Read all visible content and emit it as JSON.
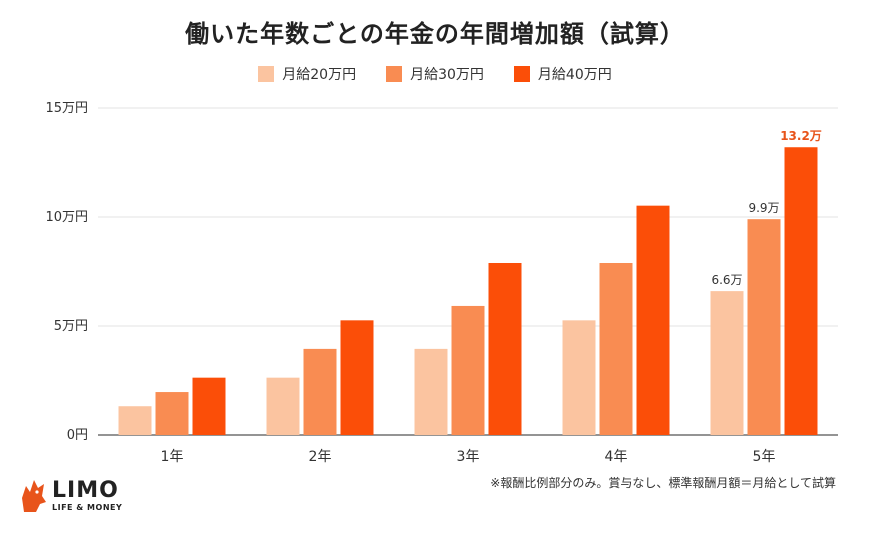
{
  "title": "働いた年数ごとの年金の年間増加額（試算）",
  "footnote": "※報酬比例部分のみ。賞与なし、標準報酬月額＝月給として試算",
  "logo": {
    "name": "LIMO",
    "tagline": "LIFE & MONEY",
    "icon": "fox-icon",
    "color": "#e8541b"
  },
  "chart_data": {
    "type": "bar",
    "title": "働いた年数ごとの年金の年間増加額（試算）",
    "categories": [
      "1年",
      "2年",
      "3年",
      "4年",
      "5年"
    ],
    "series": [
      {
        "name": "月給20万円",
        "color": "#fbc4a0",
        "values": [
          1.32,
          2.63,
          3.95,
          5.26,
          6.6
        ]
      },
      {
        "name": "月給30万円",
        "color": "#f98c52",
        "values": [
          1.97,
          3.95,
          5.92,
          7.89,
          9.9
        ]
      },
      {
        "name": "月給40万円",
        "color": "#fb4e08",
        "values": [
          2.63,
          5.26,
          7.89,
          10.52,
          13.2
        ]
      }
    ],
    "ylim": [
      0,
      15
    ],
    "yticks": [
      0,
      5,
      10,
      15
    ],
    "ytick_labels": [
      "0円",
      "5万円",
      "10万円",
      "15万円"
    ],
    "data_labels": [
      {
        "series": 0,
        "category": 4,
        "text": "6.6万",
        "color": "#333333",
        "bold": false
      },
      {
        "series": 1,
        "category": 4,
        "text": "9.9万",
        "color": "#333333",
        "bold": false
      },
      {
        "series": 2,
        "category": 4,
        "text": "13.2万",
        "color": "#e8541b",
        "bold": true
      }
    ],
    "grid": true,
    "legend": "top-center"
  }
}
